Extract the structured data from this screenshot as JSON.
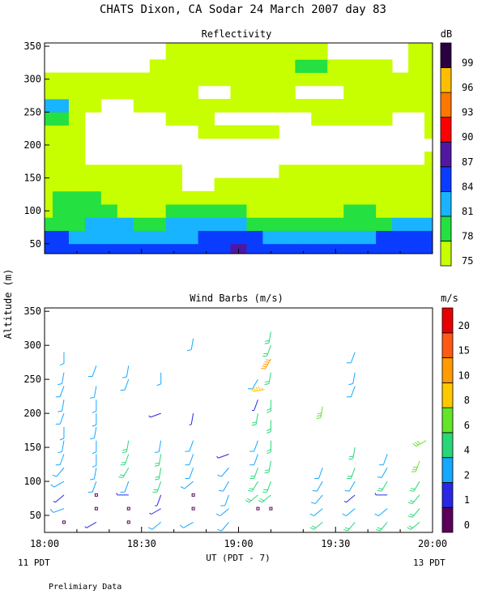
{
  "header": {
    "title": "CHATS Dixon, CA  Sodar  24 March 2007  day  83",
    "footnote": "Prelimiary Data"
  },
  "axes": {
    "y_label": "Altitude (m)",
    "x_label": "UT  (PDT - 7)",
    "x_ticks": [
      "18:00",
      "18:30",
      "19:00",
      "19:30",
      "20:00"
    ],
    "x_range": [
      0,
      120
    ],
    "left_note": "11 PDT",
    "right_note": "13 PDT"
  },
  "chart_data": [
    {
      "type": "heatmap",
      "title": "Reflectivity",
      "unit": "dB",
      "y_ticks": [
        50,
        100,
        150,
        200,
        250,
        300,
        350
      ],
      "ylim": [
        35,
        355
      ],
      "x_minutes": [
        0,
        5,
        10,
        15,
        20,
        25,
        30,
        35,
        40,
        45,
        50,
        55,
        60,
        65,
        70,
        75,
        80,
        85,
        90,
        95,
        100,
        105,
        110,
        115,
        120
      ],
      "altitudes": [
        40,
        60,
        80,
        100,
        120,
        140,
        160,
        180,
        200,
        220,
        240,
        260,
        280,
        300,
        320,
        340
      ],
      "values": [
        [
          86,
          86,
          86,
          86,
          86,
          86,
          86,
          86,
          86,
          86,
          86,
          86,
          88,
          86,
          86,
          86,
          86,
          86,
          86,
          86,
          86,
          86,
          86,
          86,
          86
        ],
        [
          84,
          84,
          83,
          83,
          83,
          83,
          83,
          83,
          83,
          83,
          84,
          84,
          85,
          84,
          83,
          83,
          83,
          83,
          83,
          83,
          83,
          84,
          84,
          84,
          84
        ],
        [
          80,
          80,
          80,
          81,
          81,
          81,
          80,
          80,
          81,
          81,
          81,
          81,
          82,
          80,
          79,
          80,
          80,
          80,
          80,
          80,
          80,
          80,
          81,
          81,
          81
        ],
        [
          77,
          78,
          78,
          78,
          78,
          77,
          77,
          77,
          78,
          78,
          78,
          78,
          78,
          77,
          77,
          77,
          77,
          77,
          77,
          78,
          78,
          77,
          77,
          77,
          77
        ],
        [
          77,
          78,
          78,
          78,
          76,
          76,
          76,
          76,
          76,
          76,
          76,
          77,
          77,
          76,
          76,
          75,
          75,
          76,
          76,
          76,
          76,
          76,
          76,
          76,
          76
        ],
        [
          76,
          76,
          76,
          76,
          76,
          76,
          76,
          75,
          75,
          74,
          74,
          75,
          75,
          75,
          75,
          75,
          76,
          76,
          76,
          76,
          75,
          75,
          76,
          76,
          77
        ],
        [
          76,
          76,
          76,
          76,
          75,
          75,
          75,
          75,
          75,
          74,
          74,
          74,
          74,
          74,
          74,
          75,
          75,
          75,
          75,
          76,
          76,
          76,
          76,
          76,
          76
        ],
        [
          75,
          75,
          75,
          74,
          74,
          74,
          74,
          74,
          74,
          74,
          74,
          74,
          74,
          74,
          74,
          74,
          74,
          74,
          74,
          74,
          74,
          74,
          74,
          74,
          75
        ],
        [
          75,
          75,
          75,
          74,
          74,
          74,
          74,
          74,
          74,
          74,
          74,
          74,
          74,
          74,
          74,
          74,
          74,
          74,
          74,
          74,
          74,
          74,
          74,
          74,
          74
        ],
        [
          75,
          75,
          75,
          74,
          74,
          74,
          74,
          74,
          74,
          74,
          75,
          75,
          75,
          75,
          75,
          74,
          74,
          74,
          74,
          74,
          74,
          74,
          74,
          74,
          75
        ],
        [
          80,
          80,
          76,
          74,
          74,
          74,
          74,
          74,
          75,
          75,
          75,
          74,
          74,
          74,
          74,
          74,
          74,
          75,
          76,
          75,
          75,
          75,
          74,
          74,
          75
        ],
        [
          81,
          81,
          76,
          75,
          74,
          74,
          75,
          75,
          75,
          75,
          75,
          75,
          75,
          75,
          75,
          75,
          75,
          76,
          76,
          75,
          75,
          75,
          75,
          75,
          75
        ],
        [
          75,
          75,
          75,
          75,
          75,
          75,
          75,
          75,
          75,
          75,
          74,
          74,
          75,
          75,
          75,
          75,
          74,
          74,
          74,
          75,
          75,
          75,
          75,
          75,
          75
        ],
        [
          75,
          75,
          75,
          75,
          75,
          75,
          75,
          75,
          76,
          75,
          75,
          75,
          75,
          75,
          75,
          75,
          75,
          75,
          75,
          75,
          75,
          75,
          75,
          75,
          75
        ],
        [
          74,
          74,
          74,
          74,
          74,
          74,
          74,
          75,
          75,
          75,
          75,
          75,
          75,
          75,
          75,
          75,
          79,
          79,
          75,
          75,
          75,
          75,
          74,
          75,
          75
        ],
        [
          74,
          74,
          74,
          74,
          74,
          74,
          74,
          74,
          75,
          75,
          75,
          75,
          75,
          75,
          75,
          75,
          75,
          75,
          74,
          74,
          74,
          74,
          74,
          75,
          75
        ]
      ],
      "colorbar": {
        "labels": [
          "75",
          "78",
          "81",
          "84",
          "87",
          "90",
          "93",
          "96",
          "99"
        ],
        "levels": [
          75,
          78,
          81,
          84,
          87,
          90,
          93,
          96,
          99
        ],
        "colors": [
          "#c8ff00",
          "#24e040",
          "#18b4ff",
          "#0a3cff",
          "#5018a0",
          "#ff0000",
          "#ff7700",
          "#ffbf00",
          "#2a0040"
        ]
      }
    },
    {
      "type": "scatter",
      "title": "Wind Barbs (m/s)",
      "unit": "m/s",
      "y_ticks": [
        50,
        100,
        150,
        200,
        250,
        300,
        350
      ],
      "ylim": [
        25,
        355
      ],
      "colorbar": {
        "labels": [
          "0",
          "1",
          "2",
          "4",
          "6",
          "8",
          "10",
          "15",
          "20"
        ],
        "colors": [
          "#5a005a",
          "#2828e6",
          "#14a8ff",
          "#28d878",
          "#64e628",
          "#ffc800",
          "#ff9b00",
          "#ff5a14",
          "#e60000"
        ]
      },
      "barbs": [
        {
          "t": 6,
          "alt": 40,
          "dir": 270,
          "spd": 0.3
        },
        {
          "t": 6,
          "alt": 60,
          "dir": 250,
          "spd": 2.5
        },
        {
          "t": 6,
          "alt": 80,
          "dir": 230,
          "spd": 1.5
        },
        {
          "t": 6,
          "alt": 100,
          "dir": 240,
          "spd": 2.5
        },
        {
          "t": 6,
          "alt": 120,
          "dir": 220,
          "spd": 2.5
        },
        {
          "t": 6,
          "alt": 140,
          "dir": 200,
          "spd": 2.5
        },
        {
          "t": 6,
          "alt": 160,
          "dir": 190,
          "spd": 2.5
        },
        {
          "t": 6,
          "alt": 180,
          "dir": 180,
          "spd": 2.5
        },
        {
          "t": 6,
          "alt": 200,
          "dir": 200,
          "spd": 2.5
        },
        {
          "t": 6,
          "alt": 220,
          "dir": 190,
          "spd": 2.5
        },
        {
          "t": 6,
          "alt": 240,
          "dir": 200,
          "spd": 2.5
        },
        {
          "t": 6,
          "alt": 260,
          "dir": 190,
          "spd": 2.5
        },
        {
          "t": 6,
          "alt": 290,
          "dir": 180,
          "spd": 2.5
        },
        {
          "t": 16,
          "alt": 40,
          "dir": 240,
          "spd": 1.5
        },
        {
          "t": 16,
          "alt": 60,
          "dir": 270,
          "spd": 0.3
        },
        {
          "t": 16,
          "alt": 80,
          "dir": 270,
          "spd": 0.3
        },
        {
          "t": 16,
          "alt": 100,
          "dir": 200,
          "spd": 2.5
        },
        {
          "t": 16,
          "alt": 120,
          "dir": 190,
          "spd": 2.5
        },
        {
          "t": 16,
          "alt": 140,
          "dir": 180,
          "spd": 2.5
        },
        {
          "t": 16,
          "alt": 160,
          "dir": 180,
          "spd": 2.5
        },
        {
          "t": 16,
          "alt": 180,
          "dir": 190,
          "spd": 2.5
        },
        {
          "t": 16,
          "alt": 200,
          "dir": 180,
          "spd": 2.5
        },
        {
          "t": 16,
          "alt": 220,
          "dir": 180,
          "spd": 2.5
        },
        {
          "t": 16,
          "alt": 240,
          "dir": 190,
          "spd": 2.5
        },
        {
          "t": 16,
          "alt": 270,
          "dir": 200,
          "spd": 2.5
        },
        {
          "t": 26,
          "alt": 40,
          "dir": 270,
          "spd": 0.3
        },
        {
          "t": 26,
          "alt": 60,
          "dir": 270,
          "spd": 0.3
        },
        {
          "t": 26,
          "alt": 80,
          "dir": 270,
          "spd": 1.5
        },
        {
          "t": 26,
          "alt": 100,
          "dir": 200,
          "spd": 2.5
        },
        {
          "t": 26,
          "alt": 120,
          "dir": 210,
          "spd": 4.5
        },
        {
          "t": 26,
          "alt": 140,
          "dir": 200,
          "spd": 4.5
        },
        {
          "t": 26,
          "alt": 160,
          "dir": 190,
          "spd": 4.5
        },
        {
          "t": 26,
          "alt": 250,
          "dir": 200,
          "spd": 2.5
        },
        {
          "t": 26,
          "alt": 270,
          "dir": 190,
          "spd": 2.5
        },
        {
          "t": 36,
          "alt": 40,
          "dir": 230,
          "spd": 2.5
        },
        {
          "t": 36,
          "alt": 60,
          "dir": 240,
          "spd": 1.5
        },
        {
          "t": 36,
          "alt": 80,
          "dir": 200,
          "spd": 1.5
        },
        {
          "t": 36,
          "alt": 100,
          "dir": 200,
          "spd": 4.5
        },
        {
          "t": 36,
          "alt": 120,
          "dir": 190,
          "spd": 4.5
        },
        {
          "t": 36,
          "alt": 140,
          "dir": 190,
          "spd": 4.5
        },
        {
          "t": 36,
          "alt": 160,
          "dir": 190,
          "spd": 2.5
        },
        {
          "t": 36,
          "alt": 200,
          "dir": 250,
          "spd": 1.5
        },
        {
          "t": 36,
          "alt": 260,
          "dir": 180,
          "spd": 2.5
        },
        {
          "t": 46,
          "alt": 40,
          "dir": 240,
          "spd": 2.5
        },
        {
          "t": 46,
          "alt": 60,
          "dir": 270,
          "spd": 0.3
        },
        {
          "t": 46,
          "alt": 80,
          "dir": 270,
          "spd": 0.3
        },
        {
          "t": 46,
          "alt": 100,
          "dir": 230,
          "spd": 2.5
        },
        {
          "t": 46,
          "alt": 120,
          "dir": 200,
          "spd": 2.5
        },
        {
          "t": 46,
          "alt": 140,
          "dir": 200,
          "spd": 2.5
        },
        {
          "t": 46,
          "alt": 160,
          "dir": 200,
          "spd": 2.5
        },
        {
          "t": 46,
          "alt": 200,
          "dir": 190,
          "spd": 1.5
        },
        {
          "t": 46,
          "alt": 310,
          "dir": 190,
          "spd": 2.5
        },
        {
          "t": 57,
          "alt": 40,
          "dir": 220,
          "spd": 2.5
        },
        {
          "t": 57,
          "alt": 60,
          "dir": 230,
          "spd": 2.5
        },
        {
          "t": 57,
          "alt": 80,
          "dir": 200,
          "spd": 2.5
        },
        {
          "t": 57,
          "alt": 100,
          "dir": 210,
          "spd": 2.5
        },
        {
          "t": 57,
          "alt": 120,
          "dir": 220,
          "spd": 2.5
        },
        {
          "t": 57,
          "alt": 140,
          "dir": 250,
          "spd": 1.5
        },
        {
          "t": 66,
          "alt": 60,
          "dir": 270,
          "spd": 0.3
        },
        {
          "t": 66,
          "alt": 80,
          "dir": 230,
          "spd": 4.5
        },
        {
          "t": 66,
          "alt": 100,
          "dir": 210,
          "spd": 4.5
        },
        {
          "t": 66,
          "alt": 120,
          "dir": 200,
          "spd": 4.5
        },
        {
          "t": 66,
          "alt": 140,
          "dir": 200,
          "spd": 2.5
        },
        {
          "t": 66,
          "alt": 160,
          "dir": 200,
          "spd": 2.5
        },
        {
          "t": 66,
          "alt": 200,
          "dir": 190,
          "spd": 4.5
        },
        {
          "t": 66,
          "alt": 220,
          "dir": 200,
          "spd": 1.5
        },
        {
          "t": 66,
          "alt": 250,
          "dir": 210,
          "spd": 2.5
        },
        {
          "t": 70,
          "alt": 60,
          "dir": 270,
          "spd": 0.3
        },
        {
          "t": 70,
          "alt": 80,
          "dir": 230,
          "spd": 4.5
        },
        {
          "t": 70,
          "alt": 100,
          "dir": 200,
          "spd": 4.5
        },
        {
          "t": 70,
          "alt": 130,
          "dir": 190,
          "spd": 4.5
        },
        {
          "t": 70,
          "alt": 160,
          "dir": 180,
          "spd": 4.5
        },
        {
          "t": 70,
          "alt": 190,
          "dir": 180,
          "spd": 4.5
        },
        {
          "t": 70,
          "alt": 220,
          "dir": 180,
          "spd": 4.5
        },
        {
          "t": 70,
          "alt": 260,
          "dir": 190,
          "spd": 4.5
        },
        {
          "t": 70,
          "alt": 280,
          "dir": 210,
          "spd": 10
        },
        {
          "t": 70,
          "alt": 300,
          "dir": 200,
          "spd": 4.5
        },
        {
          "t": 70,
          "alt": 320,
          "dir": 190,
          "spd": 4.5
        },
        {
          "t": 68,
          "alt": 235,
          "dir": 260,
          "spd": 9
        },
        {
          "t": 86,
          "alt": 40,
          "dir": 230,
          "spd": 4.5
        },
        {
          "t": 86,
          "alt": 60,
          "dir": 230,
          "spd": 2.5
        },
        {
          "t": 86,
          "alt": 80,
          "dir": 220,
          "spd": 2.5
        },
        {
          "t": 86,
          "alt": 100,
          "dir": 210,
          "spd": 2.5
        },
        {
          "t": 86,
          "alt": 120,
          "dir": 200,
          "spd": 2.5
        },
        {
          "t": 86,
          "alt": 210,
          "dir": 190,
          "spd": 6.5
        },
        {
          "t": 96,
          "alt": 40,
          "dir": 220,
          "spd": 4.5
        },
        {
          "t": 96,
          "alt": 60,
          "dir": 230,
          "spd": 2.5
        },
        {
          "t": 96,
          "alt": 80,
          "dir": 230,
          "spd": 1.5
        },
        {
          "t": 96,
          "alt": 100,
          "dir": 210,
          "spd": 2.5
        },
        {
          "t": 96,
          "alt": 120,
          "dir": 200,
          "spd": 4.5
        },
        {
          "t": 96,
          "alt": 150,
          "dir": 190,
          "spd": 4.5
        },
        {
          "t": 96,
          "alt": 240,
          "dir": 200,
          "spd": 2.5
        },
        {
          "t": 96,
          "alt": 260,
          "dir": 190,
          "spd": 2.5
        },
        {
          "t": 96,
          "alt": 290,
          "dir": 200,
          "spd": 2.5
        },
        {
          "t": 106,
          "alt": 40,
          "dir": 220,
          "spd": 4.5
        },
        {
          "t": 106,
          "alt": 60,
          "dir": 230,
          "spd": 2.5
        },
        {
          "t": 106,
          "alt": 80,
          "dir": 270,
          "spd": 1
        },
        {
          "t": 106,
          "alt": 100,
          "dir": 210,
          "spd": 4.5
        },
        {
          "t": 106,
          "alt": 120,
          "dir": 210,
          "spd": 2.5
        },
        {
          "t": 106,
          "alt": 140,
          "dir": 200,
          "spd": 2.5
        },
        {
          "t": 116,
          "alt": 40,
          "dir": 230,
          "spd": 4.5
        },
        {
          "t": 116,
          "alt": 60,
          "dir": 220,
          "spd": 4.5
        },
        {
          "t": 116,
          "alt": 80,
          "dir": 220,
          "spd": 4.5
        },
        {
          "t": 116,
          "alt": 100,
          "dir": 210,
          "spd": 4.5
        },
        {
          "t": 116,
          "alt": 130,
          "dir": 200,
          "spd": 6.5
        },
        {
          "t": 118,
          "alt": 160,
          "dir": 240,
          "spd": 6.5
        }
      ]
    }
  ]
}
